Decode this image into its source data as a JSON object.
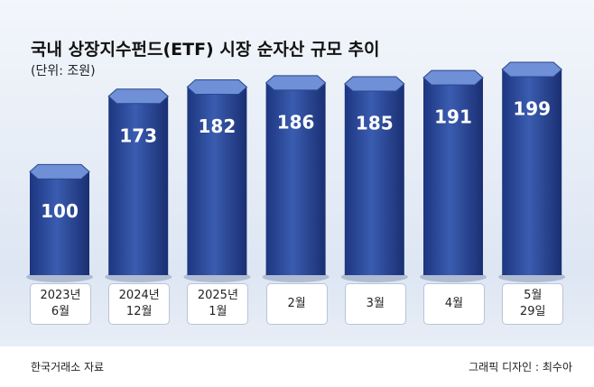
{
  "chart_data": {
    "type": "bar",
    "title": "국내 상장지수펀드(ETF) 시장 순자산 규모 추이",
    "subtitle": "(단위: 조원)",
    "categories": [
      "2023년\n6월",
      "2024년\n12월",
      "2025년\n1월",
      "2월",
      "3월",
      "4월",
      "5월\n29일"
    ],
    "values": [
      100,
      173,
      182,
      186,
      185,
      191,
      199
    ],
    "color": "#2b4a9a",
    "source": "한국거래소 자료",
    "credit": "그래픽 디자인 : 최수아"
  }
}
